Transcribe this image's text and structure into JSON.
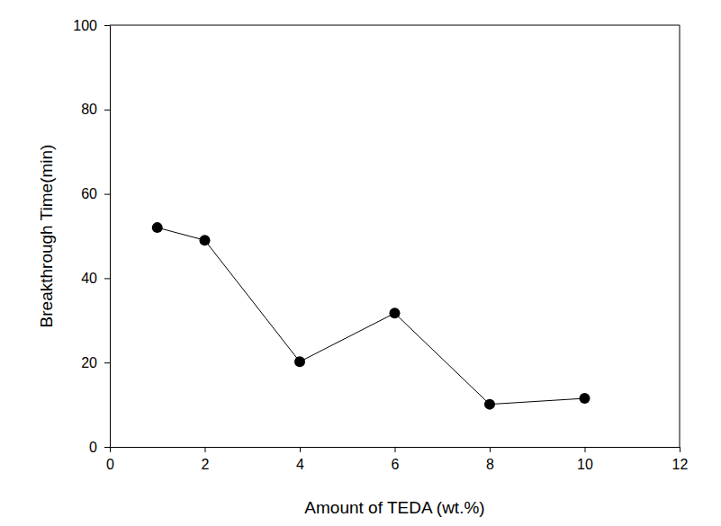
{
  "chart_data": {
    "type": "line",
    "x": [
      1,
      2,
      4,
      6,
      8,
      10
    ],
    "values": [
      52,
      49,
      20.2,
      31.7,
      10.1,
      11.5
    ],
    "color": "#000000",
    "marker": "circle",
    "xlabel": "Amount of TEDA (wt.%)",
    "ylabel": "Breakthrough Time(min)",
    "xlim": [
      0,
      12
    ],
    "ylim": [
      0,
      100
    ],
    "xticks": [
      0,
      2,
      4,
      6,
      8,
      10,
      12
    ],
    "yticks": [
      0,
      20,
      40,
      60,
      80,
      100
    ]
  }
}
